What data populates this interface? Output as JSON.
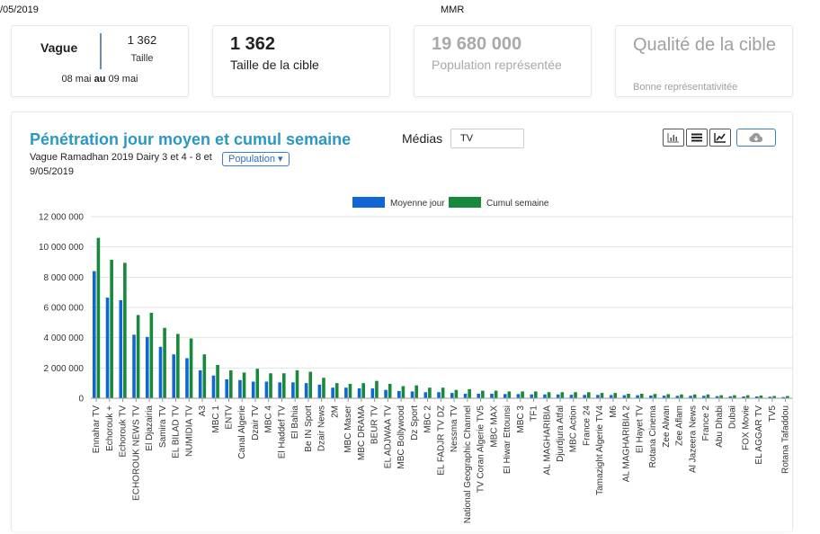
{
  "header": {
    "date": "/05/2019",
    "brand": "MMR"
  },
  "cards": {
    "vague": {
      "label": "Vague",
      "count": "1 362",
      "count_label": "Taille",
      "date_from": "08 mai",
      "date_sep": "au",
      "date_to": "09 mai"
    },
    "cible": {
      "value": "1 362",
      "label": "Taille de la cible"
    },
    "population": {
      "value": "19 680 000",
      "label": "Population représentée"
    },
    "qualite": {
      "title": "Qualité de la cible",
      "subtitle": "Bonne représentativitée"
    }
  },
  "controls": {
    "title": "Pénétration jour moyen et cumul semaine",
    "subtitle": "Vague Ramadhan 2019 Dairy 3 et 4 - 8 et 9/05/2019",
    "population_button": "Population ▾",
    "medias_label": "Médias",
    "medias_value": "TV",
    "icons": [
      "bar-chart-icon",
      "list-icon",
      "line-chart-icon",
      "cloud-download-icon"
    ]
  },
  "chart_data": {
    "type": "bar",
    "title": "Pénétration jour moyen et cumul semaine",
    "ylim": [
      0,
      12000000
    ],
    "yticks": [
      0,
      2000000,
      4000000,
      6000000,
      8000000,
      10000000,
      12000000
    ],
    "ytick_labels": [
      "0",
      "2 000 000",
      "4 000 000",
      "6 000 000",
      "8 000 000",
      "10 000 000",
      "12 000 000"
    ],
    "grid": true,
    "legend_position": "top-center",
    "colors": {
      "Moyenne jour": "#1066d6",
      "Cumul semaine": "#168a3a"
    },
    "categories": [
      "Ennahar TV",
      "Echorouk +",
      "Echorouk TV",
      "ECHOROUK NEWS TV",
      "El Djazairia",
      "Samira TV",
      "EL BILAD TV",
      "NUMIDIA TV",
      "A3",
      "MBC 1",
      "ENTV",
      "Canal Algerie",
      "Dzair TV",
      "MBC 4",
      "El Haddef TV",
      "El Bahia",
      "Be IN Sport",
      "Dzair News",
      "2M",
      "MBC Maser",
      "MBC DRAMA",
      "BEUR TV",
      "EL ADJWAA TV",
      "MBC Bollywood",
      "Dz Sport",
      "MBC 2",
      "EL FADJR TV DZ",
      "Nessma TV",
      "National Geographic Channel",
      "TV Coran Algerie TV5",
      "MBC MAX",
      "El Hiwar Ettounsi",
      "MBC 3",
      "TF1",
      "AL MAGHARIBIA",
      "Djurdjura Atfal",
      "MBC Action",
      "France 24",
      "Tamazight Algerie TV4",
      "M6",
      "AL MAGHARIBIA 2",
      "El Hayet TV",
      "Rotana Cinema",
      "Zee Alwan",
      "Zee Aflam",
      "Al Jazeera News",
      "France 2",
      "Abu Dhabi",
      "Dubai",
      "FOX Movie",
      "EL AGGAR TV",
      "TV5",
      "Rotana Tafaddou"
    ],
    "series": [
      {
        "name": "Moyenne jour",
        "values": [
          8400000,
          6650000,
          6480000,
          4200000,
          4050000,
          3400000,
          2900000,
          2650000,
          1850000,
          1500000,
          1250000,
          1200000,
          1100000,
          1100000,
          1050000,
          1050000,
          1000000,
          900000,
          700000,
          700000,
          650000,
          650000,
          550000,
          480000,
          450000,
          400000,
          400000,
          350000,
          300000,
          300000,
          300000,
          280000,
          280000,
          250000,
          250000,
          250000,
          230000,
          220000,
          220000,
          210000,
          200000,
          200000,
          180000,
          170000,
          160000,
          160000,
          160000,
          140000,
          130000,
          120000,
          120000,
          100000,
          80000
        ]
      },
      {
        "name": "Cumul semaine",
        "values": [
          10600000,
          9150000,
          8950000,
          5500000,
          5650000,
          4650000,
          4250000,
          3950000,
          2900000,
          2200000,
          1850000,
          1700000,
          1950000,
          1650000,
          1650000,
          1850000,
          1750000,
          1350000,
          1000000,
          950000,
          1000000,
          1150000,
          950000,
          800000,
          850000,
          700000,
          700000,
          550000,
          600000,
          500000,
          500000,
          450000,
          450000,
          450000,
          400000,
          400000,
          400000,
          400000,
          350000,
          350000,
          300000,
          300000,
          280000,
          270000,
          250000,
          250000,
          250000,
          200000,
          200000,
          200000,
          180000,
          150000,
          150000
        ]
      }
    ]
  }
}
